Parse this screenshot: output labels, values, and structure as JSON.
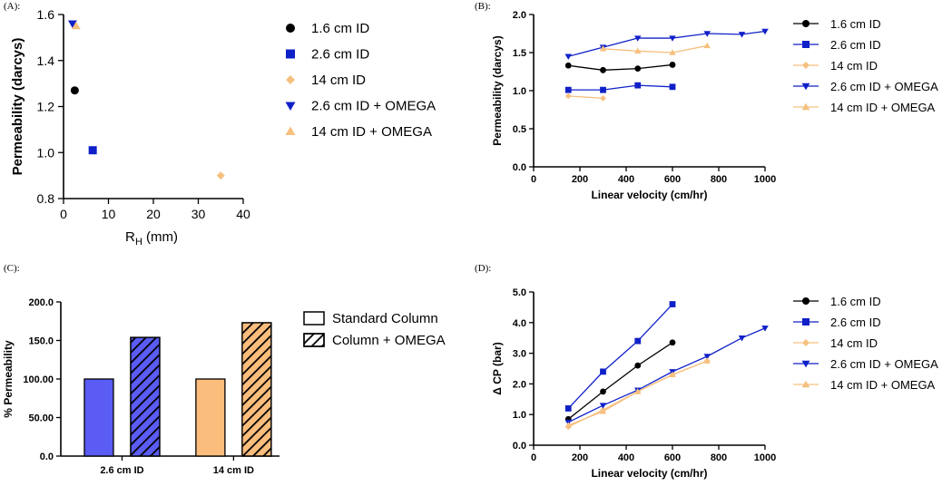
{
  "colors": {
    "black": "#000000",
    "blue": "#1020c8",
    "orange": "#f6c07e",
    "bar_blue": "#5a5cf4",
    "bar_orange": "#fbbd7c"
  },
  "chart_data": [
    {
      "panel": "(A):",
      "type": "scatter",
      "xlabel_main": "R",
      "xlabel_sub": "H",
      "xlabel_unit": " (mm)",
      "ylabel": "Permeability (darcys)",
      "xlim": [
        0,
        40
      ],
      "ylim": [
        0.8,
        1.6
      ],
      "xticks": [
        "0",
        "10",
        "20",
        "30",
        "40"
      ],
      "yticks": [
        "0.8",
        "1.0",
        "1.2",
        "1.4",
        "1.6"
      ],
      "series": [
        {
          "name": "1.6 cm ID",
          "marker": "circle",
          "color": "#000000",
          "x": [
            2.5
          ],
          "y": [
            1.27
          ]
        },
        {
          "name": "2.6 cm ID",
          "marker": "square",
          "color": "#1020c8",
          "x": [
            6.5
          ],
          "y": [
            1.01
          ]
        },
        {
          "name": "14 cm ID",
          "marker": "diamond",
          "color": "#f6c07e",
          "x": [
            35
          ],
          "y": [
            0.9
          ]
        },
        {
          "name": "2.6 cm ID + OMEGA",
          "marker": "triangle-down",
          "color": "#1020c8",
          "x": [
            2.0
          ],
          "y": [
            1.56
          ]
        },
        {
          "name": "14 cm ID + OMEGA",
          "marker": "triangle-up",
          "color": "#f6c07e",
          "x": [
            2.8
          ],
          "y": [
            1.55
          ]
        }
      ]
    },
    {
      "panel": "(B):",
      "type": "line",
      "xlabel": "Linear velocity (cm/hr)",
      "ylabel": "Permeability (darcys)",
      "xlim": [
        0,
        1000
      ],
      "ylim": [
        0,
        2.0
      ],
      "xticks": [
        "0",
        "200",
        "400",
        "600",
        "800",
        "1000"
      ],
      "yticks": [
        "0.0",
        "0.5",
        "1.0",
        "1.5",
        "2.0"
      ],
      "series": [
        {
          "name": "1.6 cm ID",
          "marker": "circle",
          "color": "#000000",
          "x": [
            150,
            300,
            450,
            600
          ],
          "y": [
            1.33,
            1.27,
            1.29,
            1.34
          ]
        },
        {
          "name": "2.6 cm ID",
          "marker": "square",
          "color": "#1020c8",
          "x": [
            150,
            300,
            450,
            600
          ],
          "y": [
            1.01,
            1.01,
            1.07,
            1.05
          ]
        },
        {
          "name": "14 cm ID",
          "marker": "diamond",
          "color": "#f6c07e",
          "x": [
            150,
            300
          ],
          "y": [
            0.93,
            0.9
          ]
        },
        {
          "name": "2.6 cm ID + OMEGA",
          "marker": "triangle-down",
          "color": "#1020c8",
          "x": [
            150,
            300,
            450,
            600,
            750,
            900,
            1000
          ],
          "y": [
            1.45,
            1.57,
            1.69,
            1.69,
            1.75,
            1.74,
            1.78
          ]
        },
        {
          "name": "14 cm ID + OMEGA",
          "marker": "triangle-up",
          "color": "#f6c07e",
          "x": [
            300,
            450,
            600,
            750
          ],
          "y": [
            1.55,
            1.52,
            1.5,
            1.59
          ]
        }
      ]
    },
    {
      "panel": "(C):",
      "type": "bar",
      "ylabel": "% Permeability",
      "ylim": [
        0,
        200
      ],
      "yticks": [
        "0.0",
        "50.00",
        "100.00",
        "150.0",
        "200.0"
      ],
      "categories": [
        "2.6 cm ID",
        "14 cm ID"
      ],
      "series": [
        {
          "name": "Standard Column",
          "pattern": "solid",
          "values": [
            100,
            100
          ]
        },
        {
          "name": "Column + OMEGA",
          "pattern": "hatched",
          "values": [
            154,
            173
          ]
        }
      ],
      "bar_colors": [
        "#5a5cf4",
        "#fbbd7c"
      ]
    },
    {
      "panel": "(D):",
      "type": "line",
      "xlabel": "Linear velocity (cm/hr)",
      "ylabel": "Δ CP (bar)",
      "xlim": [
        0,
        1000
      ],
      "ylim": [
        0,
        5.0
      ],
      "xticks": [
        "0",
        "200",
        "400",
        "600",
        "800",
        "1000"
      ],
      "yticks": [
        "0.0",
        "1.0",
        "2.0",
        "3.0",
        "4.0",
        "5.0"
      ],
      "series": [
        {
          "name": "1.6 cm ID",
          "marker": "circle",
          "color": "#000000",
          "x": [
            150,
            300,
            450,
            600
          ],
          "y": [
            0.85,
            1.75,
            2.6,
            3.35
          ]
        },
        {
          "name": "2.6 cm ID",
          "marker": "square",
          "color": "#1020c8",
          "x": [
            150,
            300,
            450,
            600
          ],
          "y": [
            1.2,
            2.4,
            3.4,
            4.6
          ]
        },
        {
          "name": "14 cm ID",
          "marker": "diamond",
          "color": "#f6c07e",
          "x": [
            150,
            300,
            450,
            600,
            750
          ],
          "y": [
            0.6,
            1.15,
            1.75,
            2.3,
            2.75
          ]
        },
        {
          "name": "2.6 cm ID + OMEGA",
          "marker": "triangle-down",
          "color": "#1020c8",
          "x": [
            150,
            300,
            450,
            600,
            750,
            900,
            1000
          ],
          "y": [
            0.75,
            1.3,
            1.8,
            2.4,
            2.9,
            3.5,
            3.82
          ]
        },
        {
          "name": "14 cm ID + OMEGA",
          "marker": "triangle-up",
          "color": "#f6c07e",
          "x": [
            150,
            300,
            450,
            600,
            750
          ],
          "y": [
            0.65,
            1.1,
            1.75,
            2.3,
            2.75
          ]
        }
      ]
    }
  ]
}
